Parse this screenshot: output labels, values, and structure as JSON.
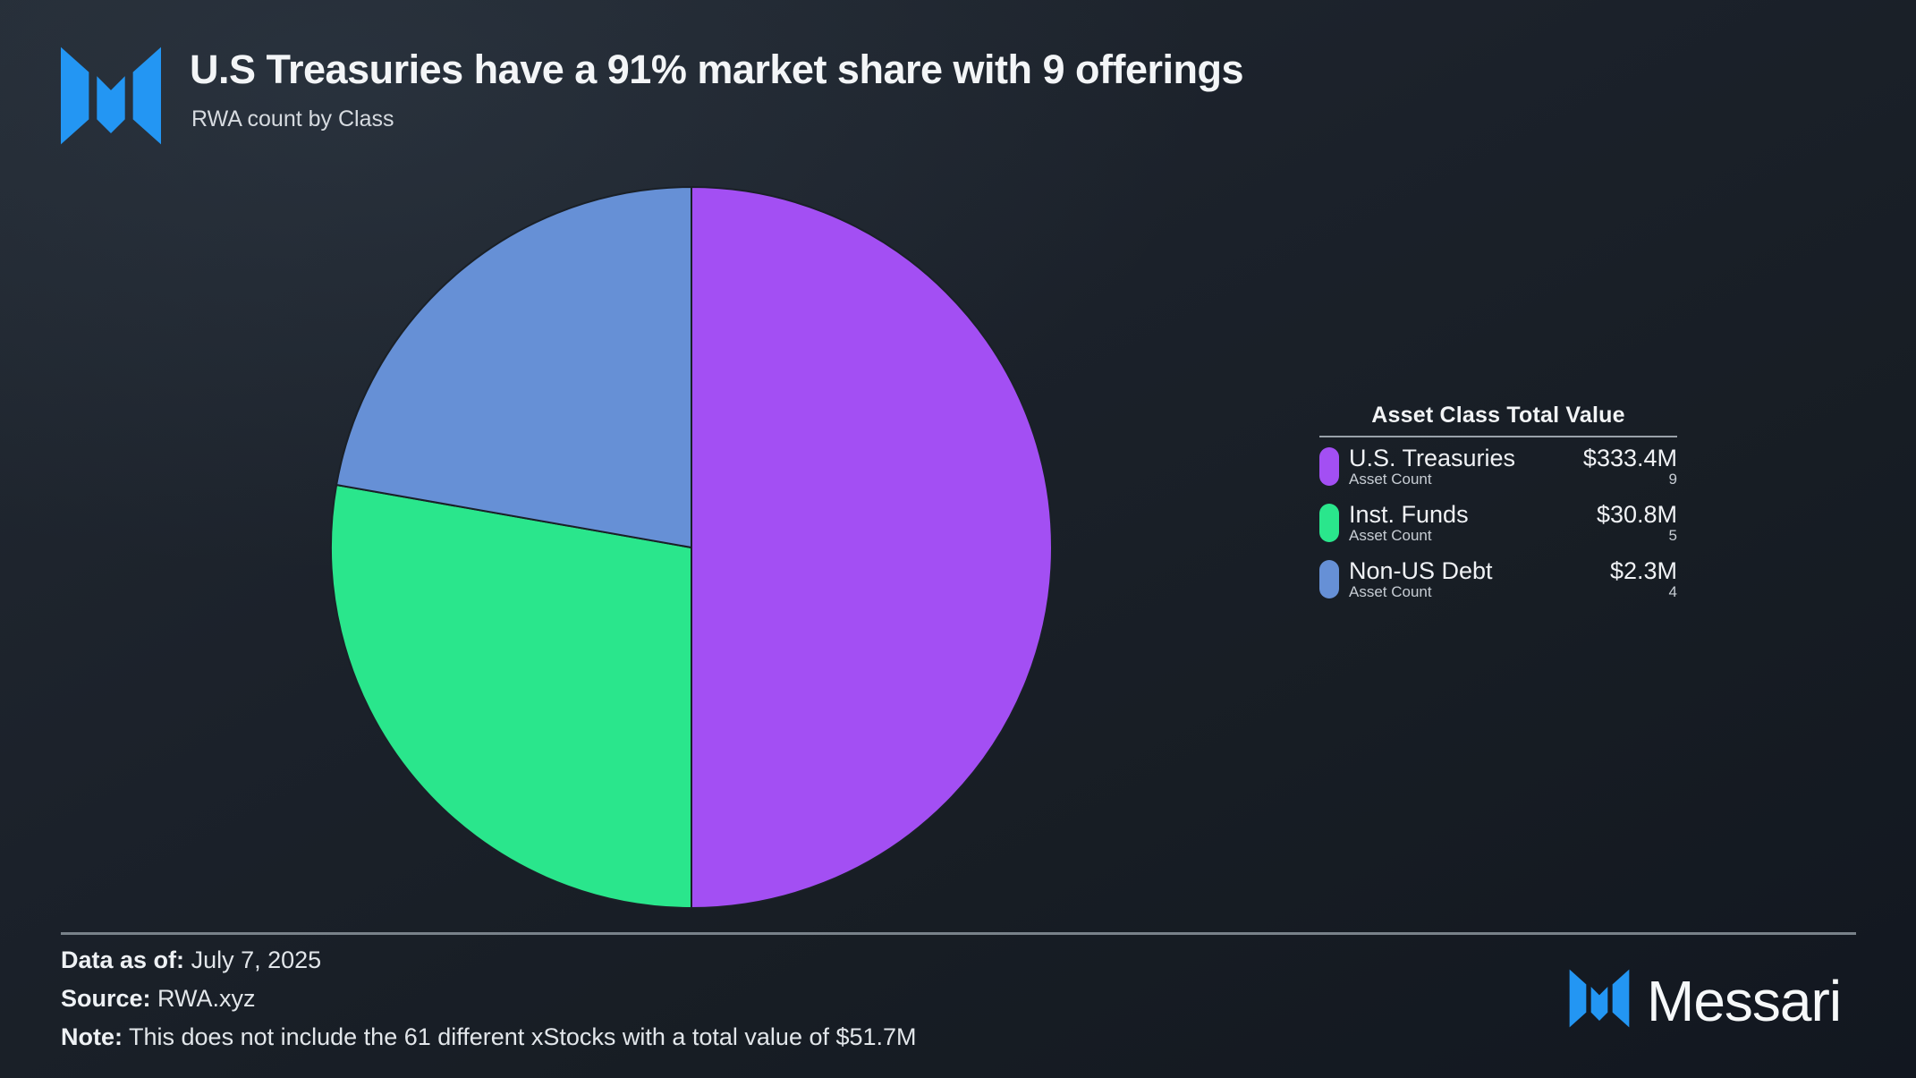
{
  "header": {
    "title": "U.S Treasuries have a 91% market share with 9 offerings",
    "subtitle": "RWA count by Class"
  },
  "legend": {
    "title": "Asset Class Total Value",
    "sub_label": "Asset Count",
    "rows": [
      {
        "label": "U.S. Treasuries",
        "value": "$333.4M",
        "count": "9",
        "color": "#a34ff3"
      },
      {
        "label": "Inst. Funds",
        "value": "$30.8M",
        "count": "5",
        "color": "#2ae68c"
      },
      {
        "label": "Non-US Debt",
        "value": "$2.3M",
        "count": "4",
        "color": "#6690d6"
      }
    ]
  },
  "footer": {
    "data_as_of_label": "Data as of:",
    "data_as_of_value": "July 7, 2025",
    "source_label": "Source:",
    "source_value": "RWA.xyz",
    "note_label": "Note:",
    "note_value": "This does not include the 61 different xStocks with a total value of $51.7M"
  },
  "brand": {
    "wordmark": "Messari",
    "logo_color": "#2396f3"
  },
  "chart_data": {
    "type": "pie",
    "title": "RWA count by Class",
    "categories": [
      "U.S. Treasuries",
      "Inst. Funds",
      "Non-US Debt"
    ],
    "values": [
      9,
      5,
      4
    ],
    "percentages": [
      50.0,
      27.8,
      22.2
    ],
    "total_values_usd": [
      "$333.4M",
      "$30.8M",
      "$2.3M"
    ],
    "colors": [
      "#a34ff3",
      "#2ae68c",
      "#6690d6"
    ],
    "start_angle_deg": -90,
    "direction": "clockwise",
    "radius_px": 403,
    "slice_stroke": "#1a2027",
    "legend_position": "right",
    "data_labels": false
  }
}
